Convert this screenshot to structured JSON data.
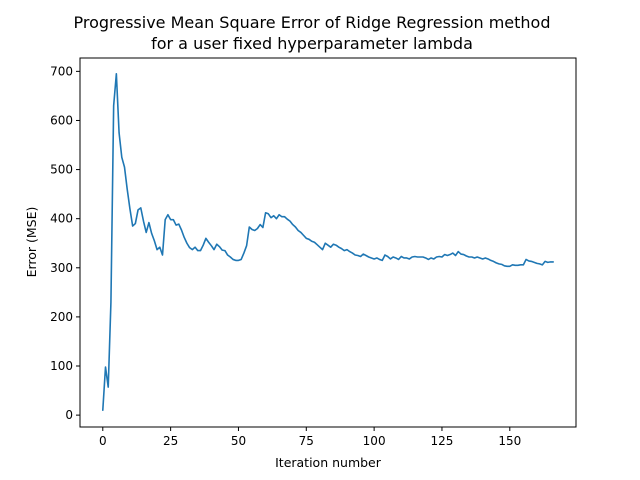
{
  "chart_data": {
    "type": "line",
    "title_line1": "Progressive Mean Square Error of Ridge Regression method",
    "title_line2": "for a user fixed hyperparameter lambda",
    "xlabel": "Iteration number",
    "ylabel": "Error (MSE)",
    "xlim": [
      -8.4,
      174.4
    ],
    "ylim": [
      -24.2,
      727.2
    ],
    "xticks": [
      0,
      25,
      50,
      75,
      100,
      125,
      150
    ],
    "yticks": [
      0,
      100,
      200,
      300,
      400,
      500,
      600,
      700
    ],
    "grid": false,
    "line_color": "#1f77b4",
    "series": [
      {
        "x": [
          0,
          1,
          2,
          3,
          4,
          5,
          6,
          7,
          8,
          9,
          10,
          11,
          12,
          13,
          14,
          15,
          16,
          17,
          18,
          19,
          20,
          21,
          22,
          23,
          24,
          25,
          26,
          27,
          28,
          29,
          30,
          31,
          32,
          33,
          34,
          35,
          36,
          37,
          38,
          39,
          40,
          41,
          42,
          43,
          44,
          45,
          46,
          47,
          48,
          49,
          50,
          51,
          52,
          53,
          54,
          55,
          56,
          57,
          58,
          59,
          60,
          61,
          62,
          63,
          64,
          65,
          66,
          67,
          68,
          69,
          70,
          71,
          72,
          73,
          74,
          75,
          76,
          77,
          78,
          79,
          80,
          81,
          82,
          83,
          84,
          85,
          86,
          87,
          88,
          89,
          90,
          91,
          92,
          93,
          94,
          95,
          96,
          97,
          98,
          99,
          100,
          101,
          102,
          103,
          104,
          105,
          106,
          107,
          108,
          109,
          110,
          111,
          112,
          113,
          114,
          115,
          116,
          117,
          118,
          119,
          120,
          121,
          122,
          123,
          124,
          125,
          126,
          127,
          128,
          129,
          130,
          131,
          132,
          133,
          134,
          135,
          136,
          137,
          138,
          139,
          140,
          141,
          142,
          143,
          144,
          145,
          146,
          147,
          148,
          149,
          150,
          151,
          152,
          153,
          154,
          155,
          156,
          157,
          158,
          159,
          160,
          161,
          162,
          163,
          164,
          165,
          166
        ],
        "y": [
          10,
          98,
          57,
          230,
          630,
          695,
          575,
          525,
          505,
          460,
          420,
          385,
          390,
          418,
          422,
          395,
          372,
          392,
          370,
          355,
          337,
          342,
          326,
          398,
          408,
          398,
          398,
          387,
          389,
          377,
          362,
          350,
          341,
          337,
          342,
          335,
          335,
          346,
          360,
          352,
          345,
          337,
          348,
          343,
          336,
          335,
          326,
          322,
          317,
          315,
          315,
          317,
          330,
          345,
          383,
          378,
          376,
          380,
          388,
          382,
          412,
          410,
          402,
          406,
          400,
          408,
          404,
          404,
          399,
          395,
          388,
          383,
          376,
          372,
          366,
          360,
          358,
          354,
          352,
          347,
          342,
          337,
          350,
          346,
          342,
          348,
          346,
          342,
          339,
          335,
          337,
          333,
          330,
          326,
          325,
          323,
          328,
          325,
          322,
          320,
          318,
          320,
          317,
          315,
          326,
          323,
          318,
          322,
          320,
          317,
          323,
          320,
          320,
          318,
          322,
          323,
          322,
          322,
          322,
          320,
          317,
          320,
          318,
          322,
          323,
          322,
          327,
          325,
          327,
          330,
          325,
          333,
          328,
          327,
          324,
          322,
          322,
          320,
          322,
          320,
          318,
          320,
          318,
          315,
          313,
          310,
          308,
          307,
          304,
          303,
          303,
          306,
          305,
          305,
          306,
          306,
          317,
          314,
          313,
          311,
          309,
          308,
          306,
          313,
          311,
          312,
          312
        ]
      }
    ]
  }
}
